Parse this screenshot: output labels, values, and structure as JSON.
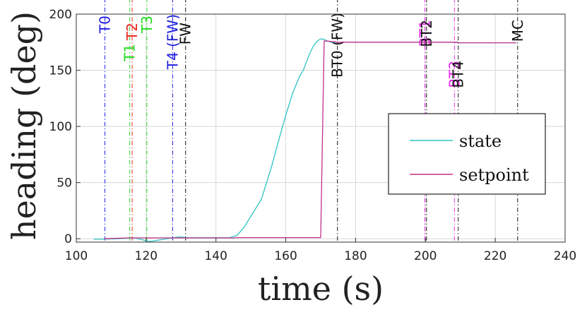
{
  "chart_data": {
    "type": "line",
    "xlabel": "time (s)",
    "ylabel": "heading (deg)",
    "xlim": [
      100,
      240
    ],
    "ylim": [
      -3,
      200
    ],
    "xticks": [
      100,
      120,
      140,
      160,
      180,
      200,
      220,
      240
    ],
    "yticks": [
      0,
      50,
      100,
      150,
      200
    ],
    "grid": true,
    "legend_position": "center-right",
    "series": [
      {
        "name": "state",
        "color": "#2ec4c4",
        "x": [
          105,
          108,
          112,
          115,
          117,
          119,
          120,
          121,
          123,
          125,
          127,
          129,
          130,
          132,
          135,
          140,
          144,
          146,
          148,
          150,
          153,
          156,
          158,
          160,
          162,
          164,
          165,
          166,
          167,
          168,
          169,
          170,
          171,
          172,
          173,
          175,
          180,
          190,
          200,
          205,
          208,
          209,
          210,
          215,
          220,
          226
        ],
        "y": [
          -0.5,
          -0.3,
          0,
          0.5,
          0.5,
          -1,
          -2,
          -2.5,
          -1.5,
          -0.5,
          0.5,
          1.5,
          1.5,
          1,
          1,
          1,
          1,
          3,
          10,
          20,
          35,
          65,
          88,
          110,
          130,
          145,
          150,
          158,
          166,
          172,
          176,
          178,
          177.5,
          176,
          175,
          175,
          175,
          175,
          175,
          175,
          175,
          175,
          174.5,
          174.5,
          174.5,
          174.5
        ]
      },
      {
        "name": "setpoint",
        "color": "#c4308c",
        "x": [
          108,
          115,
          116,
          130,
          145,
          147,
          150,
          170,
          171,
          172,
          175,
          200,
          208,
          210,
          215,
          226
        ],
        "y": [
          0,
          0.8,
          0.8,
          0.8,
          0.8,
          1,
          1,
          1,
          176,
          176,
          175,
          175,
          175,
          174.5,
          174.5,
          174.5
        ]
      }
    ],
    "events": [
      {
        "label": "T0",
        "x": 108.2,
        "color": "#2222dd"
      },
      {
        "label": "T1",
        "x": 115.3,
        "color": "#22dd22"
      },
      {
        "label": "T2",
        "x": 116.0,
        "color": "#ee2222"
      },
      {
        "label": "T3",
        "x": 120.2,
        "color": "#22dd22"
      },
      {
        "label": "T4 (FW)",
        "x": 127.6,
        "color": "#2222dd"
      },
      {
        "label": "FW",
        "x": 131.3,
        "color": "#111111"
      },
      {
        "label": "BT0 (FW)",
        "x": 174.8,
        "color": "#111111"
      },
      {
        "label": "BT1",
        "x": 199.8,
        "color": "#ee22ee"
      },
      {
        "label": "BT2",
        "x": 200.3,
        "color": "#111111"
      },
      {
        "label": "BT3",
        "x": 208.3,
        "color": "#ee22ee"
      },
      {
        "label": "BT4",
        "x": 209.4,
        "color": "#111111"
      },
      {
        "label": "MC",
        "x": 226.4,
        "color": "#111111"
      }
    ]
  }
}
